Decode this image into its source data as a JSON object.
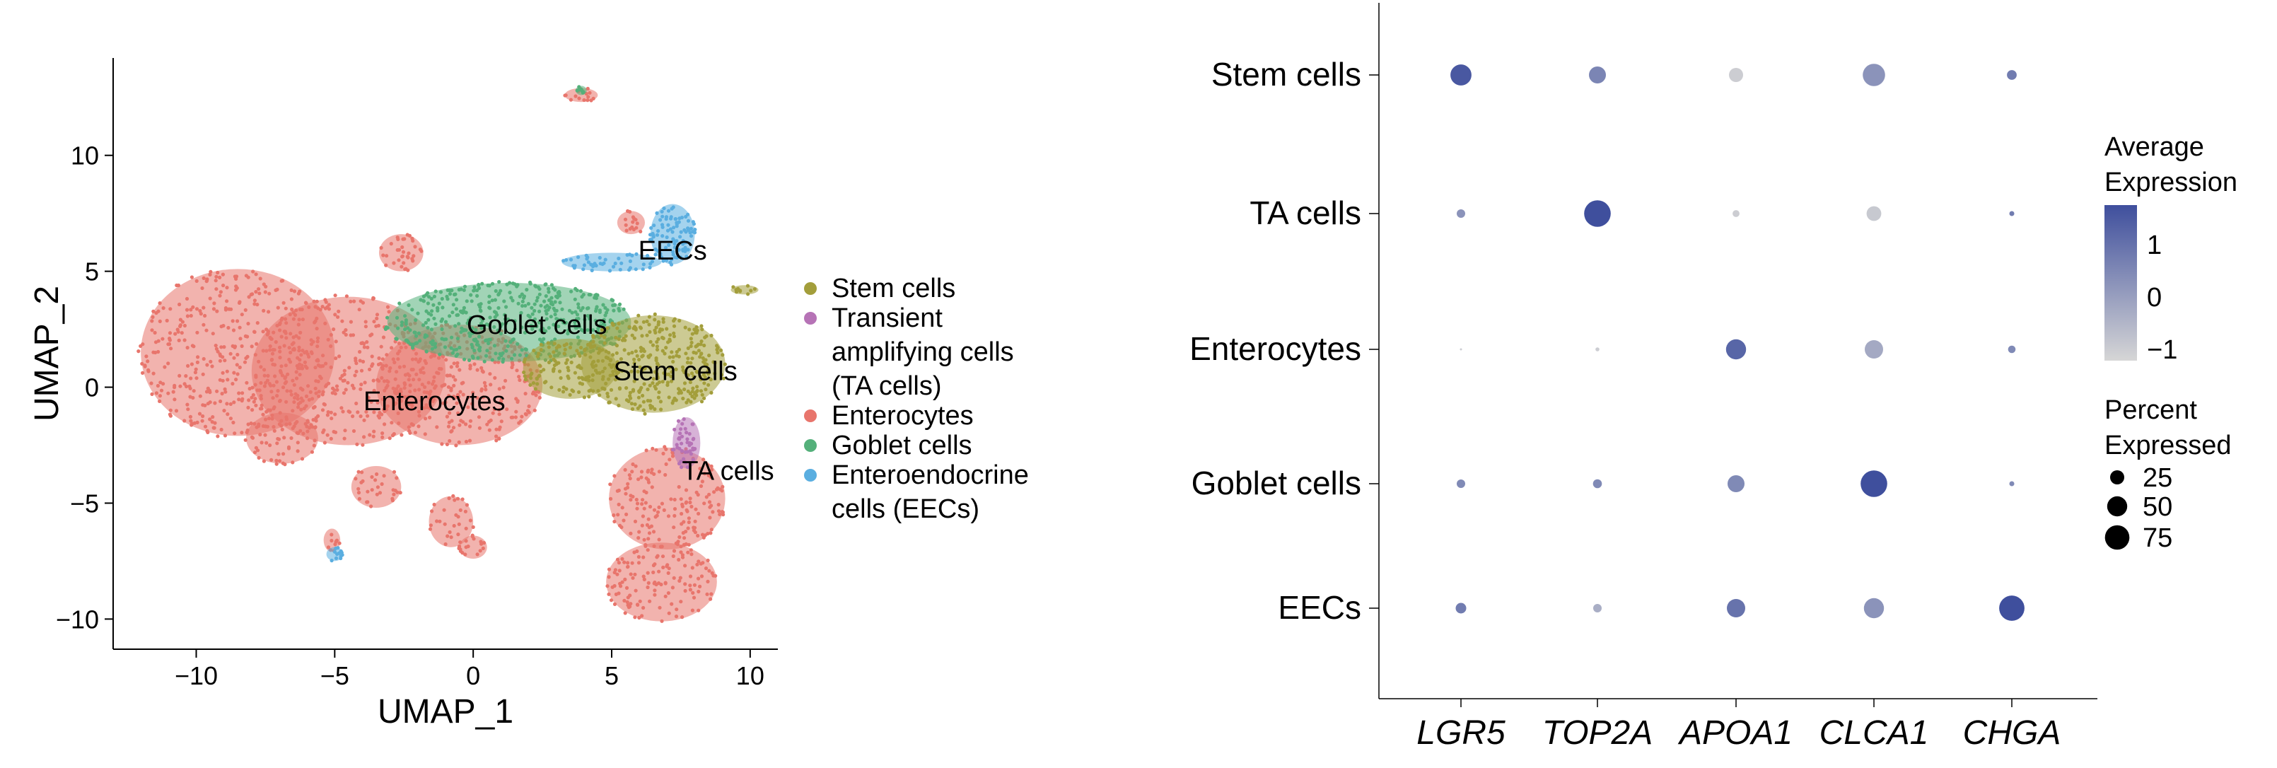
{
  "chart_data": [
    {
      "type": "scatter",
      "xlabel": "UMAP_1",
      "ylabel": "UMAP_2",
      "xlim": [
        -13,
        11
      ],
      "ylim": [
        -11.3,
        14.2
      ],
      "xticks": [
        -10,
        -5,
        0,
        5,
        10
      ],
      "yticks": [
        10,
        5,
        0,
        -5,
        -10
      ],
      "grid": false,
      "legend_position": "right",
      "colors": {
        "Stem cells": "#a39e3b",
        "Transient amplifying cells (TA cells)": "#b673b6",
        "Enterocytes": "#e8756c",
        "Goblet cells": "#54b07a",
        "Enteroendocrine cells (EECs)": "#5aaee0"
      },
      "legend": [
        {
          "lines": [
            "Stem cells"
          ],
          "color": "#a39e3b"
        },
        {
          "lines": [
            "Transient",
            "amplifying cells",
            "(TA cells)"
          ],
          "color": "#b673b6"
        },
        {
          "lines": [
            "Enterocytes"
          ],
          "color": "#e8756c"
        },
        {
          "lines": [
            "Goblet cells"
          ],
          "color": "#54b07a"
        },
        {
          "lines": [
            "Enteroendocrine",
            "cells (EECs)"
          ],
          "color": "#5aaee0"
        }
      ],
      "cluster_labels": [
        {
          "text": "EECs",
          "x": 7.2,
          "y": 5.9
        },
        {
          "text": "Goblet cells",
          "x": 2.3,
          "y": 2.7
        },
        {
          "text": "Stem cells",
          "x": 7.3,
          "y": 0.7
        },
        {
          "text": "Enterocytes",
          "x": -1.4,
          "y": -0.6
        },
        {
          "text": "TA cells",
          "x": 9.2,
          "y": -3.6
        }
      ],
      "clusters": [
        {
          "name": "Enterocytes",
          "regions": [
            {
              "cx": -8.5,
              "cy": 1.5,
              "rx": 3.5,
              "ry": 3.6,
              "n": 420
            },
            {
              "cx": -4.5,
              "cy": 0.7,
              "rx": 3.5,
              "ry": 3.2,
              "n": 340
            },
            {
              "cx": -0.5,
              "cy": 0.1,
              "rx": 3.0,
              "ry": 2.6,
              "n": 280
            },
            {
              "cx": -6.9,
              "cy": -2.2,
              "rx": 1.3,
              "ry": 1.1,
              "n": 60
            },
            {
              "cx": -2.6,
              "cy": 5.8,
              "rx": 0.8,
              "ry": 0.8,
              "n": 35
            },
            {
              "cx": -3.5,
              "cy": -4.3,
              "rx": 0.9,
              "ry": 0.9,
              "n": 30
            },
            {
              "cx": -0.8,
              "cy": -5.8,
              "rx": 0.8,
              "ry": 1.1,
              "n": 30
            },
            {
              "cx": 0.0,
              "cy": -6.9,
              "rx": 0.5,
              "ry": 0.5,
              "n": 18
            },
            {
              "cx": -5.1,
              "cy": -6.6,
              "rx": 0.3,
              "ry": 0.5,
              "n": 10
            },
            {
              "cx": 7.0,
              "cy": -4.8,
              "rx": 2.1,
              "ry": 2.2,
              "n": 170
            },
            {
              "cx": 6.8,
              "cy": -8.4,
              "rx": 2.0,
              "ry": 1.7,
              "n": 140
            },
            {
              "cx": 5.7,
              "cy": 7.1,
              "rx": 0.5,
              "ry": 0.5,
              "n": 15
            },
            {
              "cx": 3.9,
              "cy": 12.6,
              "rx": 0.6,
              "ry": 0.3,
              "n": 15
            }
          ]
        },
        {
          "name": "Goblet cells",
          "regions": [
            {
              "cx": 1.3,
              "cy": 2.8,
              "rx": 4.4,
              "ry": 1.7,
              "n": 480
            },
            {
              "cx": 3.9,
              "cy": 12.8,
              "rx": 0.2,
              "ry": 0.2,
              "n": 8
            }
          ]
        },
        {
          "name": "Stem cells",
          "regions": [
            {
              "cx": 6.5,
              "cy": 1.0,
              "rx": 2.6,
              "ry": 2.1,
              "n": 330
            },
            {
              "cx": 3.5,
              "cy": 0.8,
              "rx": 1.7,
              "ry": 1.3,
              "n": 110
            },
            {
              "cx": 9.8,
              "cy": 4.2,
              "rx": 0.5,
              "ry": 0.2,
              "n": 10
            }
          ]
        },
        {
          "name": "Enteroendocrine cells (EECs)",
          "regions": [
            {
              "cx": 7.2,
              "cy": 6.6,
              "rx": 0.8,
              "ry": 1.3,
              "n": 90
            },
            {
              "cx": 5.0,
              "cy": 5.4,
              "rx": 1.8,
              "ry": 0.4,
              "n": 45
            },
            {
              "cx": -5.0,
              "cy": -7.2,
              "rx": 0.3,
              "ry": 0.3,
              "n": 12
            }
          ]
        },
        {
          "name": "Transient amplifying cells (TA cells)",
          "regions": [
            {
              "cx": 7.7,
              "cy": -2.4,
              "rx": 0.5,
              "ry": 1.1,
              "n": 45
            }
          ]
        }
      ]
    },
    {
      "type": "dot",
      "rows": [
        "Stem cells",
        "TA cells",
        "Enterocytes",
        "Goblet cells",
        "EECs"
      ],
      "genes": [
        "LGR5",
        "TOP2A",
        "APOA1",
        "CLCA1",
        "CHGA"
      ],
      "avg_expression": [
        [
          1.6,
          0.6,
          -1.0,
          0.3,
          0.8
        ],
        [
          0.3,
          1.9,
          -1.0,
          -0.9,
          0.8
        ],
        [
          -1.0,
          -1.0,
          1.3,
          -0.2,
          0.5
        ],
        [
          0.5,
          0.5,
          0.5,
          1.8,
          0.5
        ],
        [
          0.8,
          -0.3,
          1.0,
          0.3,
          1.9
        ]
      ],
      "pct_expressed": [
        [
          55,
          36,
          25,
          62,
          12
        ],
        [
          9,
          88,
          6,
          27,
          3
        ],
        [
          1,
          2,
          50,
          42,
          7
        ],
        [
          9,
          10,
          36,
          88,
          3
        ],
        [
          14,
          9,
          42,
          50,
          80
        ]
      ],
      "legend_color": {
        "title_lines": [
          "Average",
          "Expression"
        ],
        "ticks": [
          "1",
          "0",
          "−1"
        ],
        "range": [
          -1.2,
          1.8
        ],
        "low": "#d6d6d6",
        "high": "#3f4f9d"
      },
      "legend_size": {
        "title_lines": [
          "Percent",
          "Expressed"
        ],
        "values": [
          "25",
          "50",
          "75"
        ]
      }
    }
  ]
}
